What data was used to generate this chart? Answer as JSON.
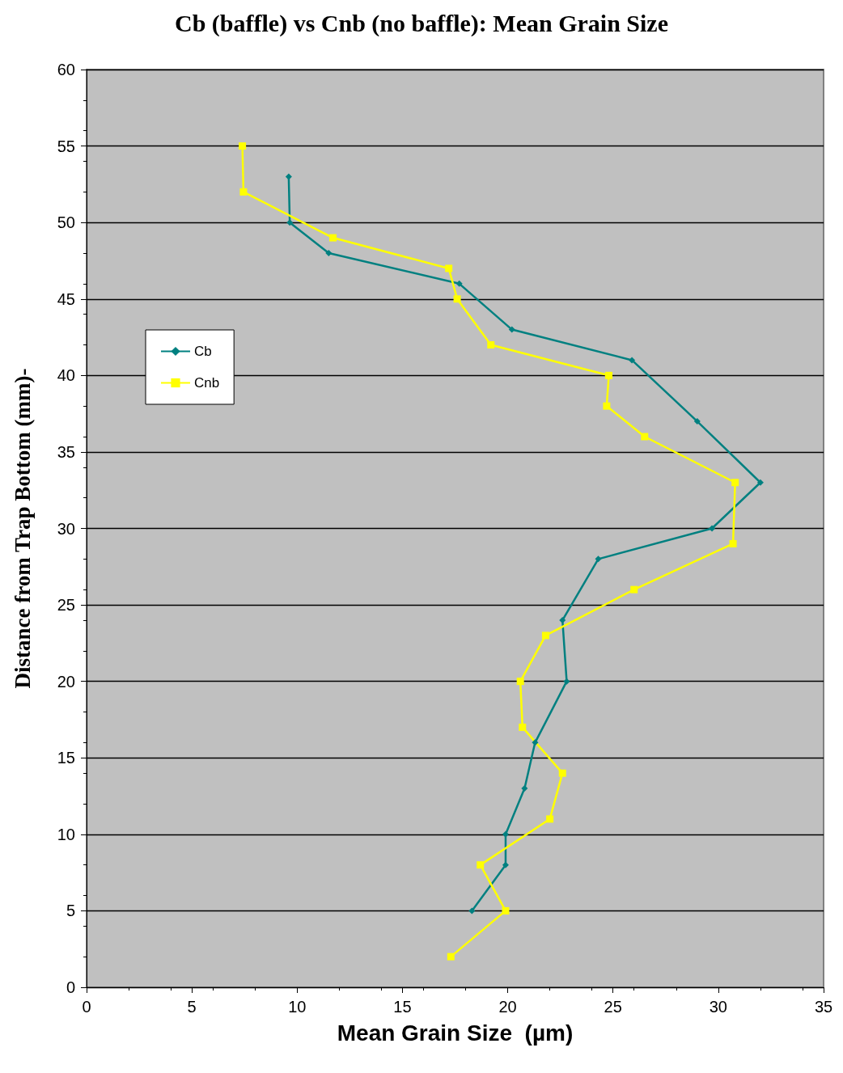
{
  "chart_data": {
    "type": "line",
    "title": "Cb (baffle) vs Cnb (no baffle): Mean Grain Size",
    "xlabel": "Mean Grain Size  (µm)",
    "ylabel": "Distance from Trap Bottom (mm)-",
    "xlim": [
      0,
      35
    ],
    "xticks": [
      0,
      5,
      10,
      15,
      20,
      25,
      30,
      35
    ],
    "ylim": [
      0,
      60
    ],
    "yticks": [
      0,
      5,
      10,
      15,
      20,
      25,
      30,
      35,
      40,
      45,
      50,
      55,
      60
    ],
    "grid": "y",
    "legend": "left",
    "series": [
      {
        "name": "Cb",
        "color": "#008080",
        "marker": "diamond",
        "x": [
          9.6,
          9.65,
          11.5,
          17.7,
          20.2,
          25.9,
          29.0,
          32.0,
          29.7,
          24.3,
          22.6,
          22.8,
          21.3,
          20.8,
          19.9,
          19.9,
          18.3
        ],
        "values": [
          53,
          50,
          48,
          46,
          43,
          41,
          37,
          33,
          30,
          28,
          24,
          20,
          16,
          13,
          10,
          8,
          5
        ]
      },
      {
        "name": "Cnb",
        "color": "#ffff00",
        "marker": "square",
        "x": [
          7.4,
          7.45,
          11.7,
          17.2,
          17.6,
          19.2,
          24.8,
          24.7,
          26.5,
          30.8,
          30.7,
          26.0,
          21.8,
          20.6,
          20.7,
          22.6,
          22.0,
          18.7,
          19.9,
          17.3
        ],
        "values": [
          55,
          52,
          49,
          47,
          45,
          42,
          40,
          38,
          36,
          33,
          29,
          26,
          23,
          20,
          17,
          14,
          11,
          8,
          5,
          2
        ]
      }
    ]
  }
}
